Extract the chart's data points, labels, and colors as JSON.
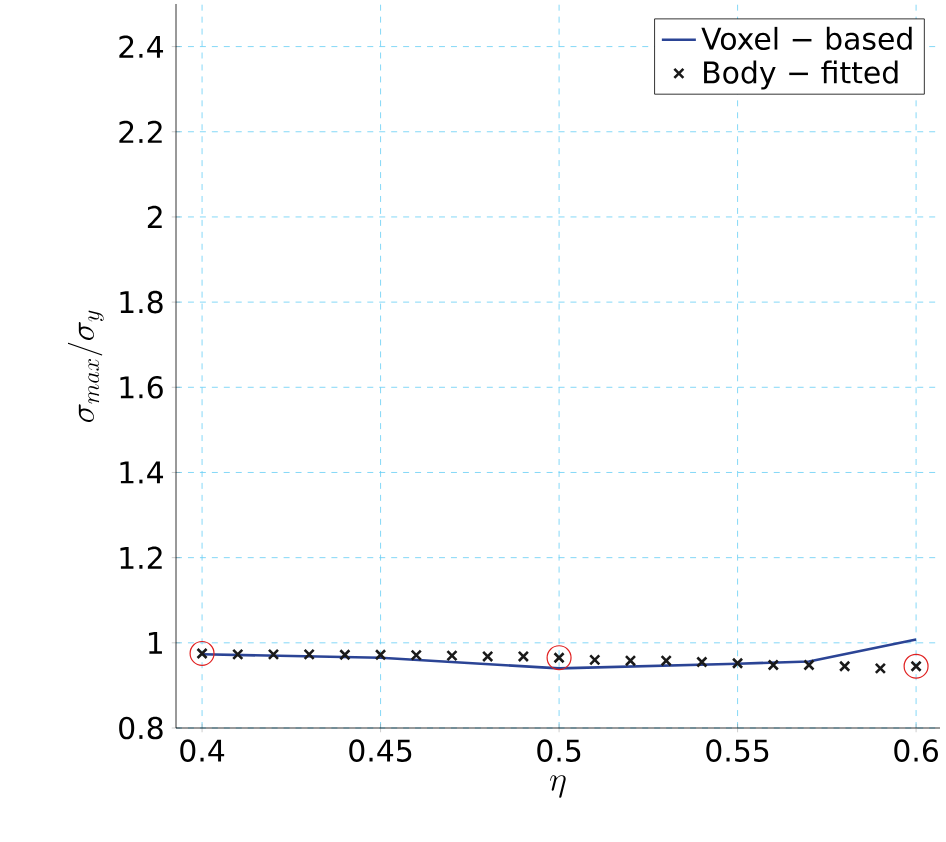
{
  "chart_data": {
    "type": "line",
    "xlabel": "\\eta",
    "ylabel": "\\sigma_{max}/\\sigma_y",
    "xlim": [
      0.3927,
      0.6067
    ],
    "ylim": [
      0.8,
      2.5
    ],
    "xticks": [
      0.4,
      0.45,
      0.5,
      0.55,
      0.6
    ],
    "yticks": [
      0.8,
      1,
      1.2,
      1.4,
      1.6,
      1.8,
      2,
      2.2,
      2.4
    ],
    "grid": true,
    "legend": "top right",
    "series": [
      {
        "name": "Voxel − based",
        "color": "#2b4495",
        "marker": "none",
        "x": [
          0.4,
          0.45,
          0.5,
          0.55,
          0.57,
          0.6
        ],
        "values": [
          0.973,
          0.965,
          0.94,
          0.951,
          0.956,
          1.008
        ]
      },
      {
        "name": "Body − fitted",
        "type": "scatter",
        "color": "#1a1a1a",
        "marker": "cross",
        "x": [
          0.4,
          0.41,
          0.42,
          0.43,
          0.44,
          0.45,
          0.46,
          0.47,
          0.48,
          0.49,
          0.5,
          0.51,
          0.52,
          0.53,
          0.54,
          0.55,
          0.56,
          0.57,
          0.58,
          0.59,
          0.6
        ],
        "values": [
          0.975,
          0.973,
          0.973,
          0.973,
          0.972,
          0.972,
          0.971,
          0.97,
          0.968,
          0.968,
          0.965,
          0.96,
          0.958,
          0.958,
          0.955,
          0.952,
          0.948,
          0.948,
          0.945,
          0.94,
          0.945
        ]
      },
      {
        "type": "scatter",
        "color": "#e02020",
        "marker": "circle",
        "x": [
          0.4,
          0.5,
          0.6
        ],
        "values": [
          0.975,
          0.965,
          0.945
        ]
      }
    ]
  }
}
